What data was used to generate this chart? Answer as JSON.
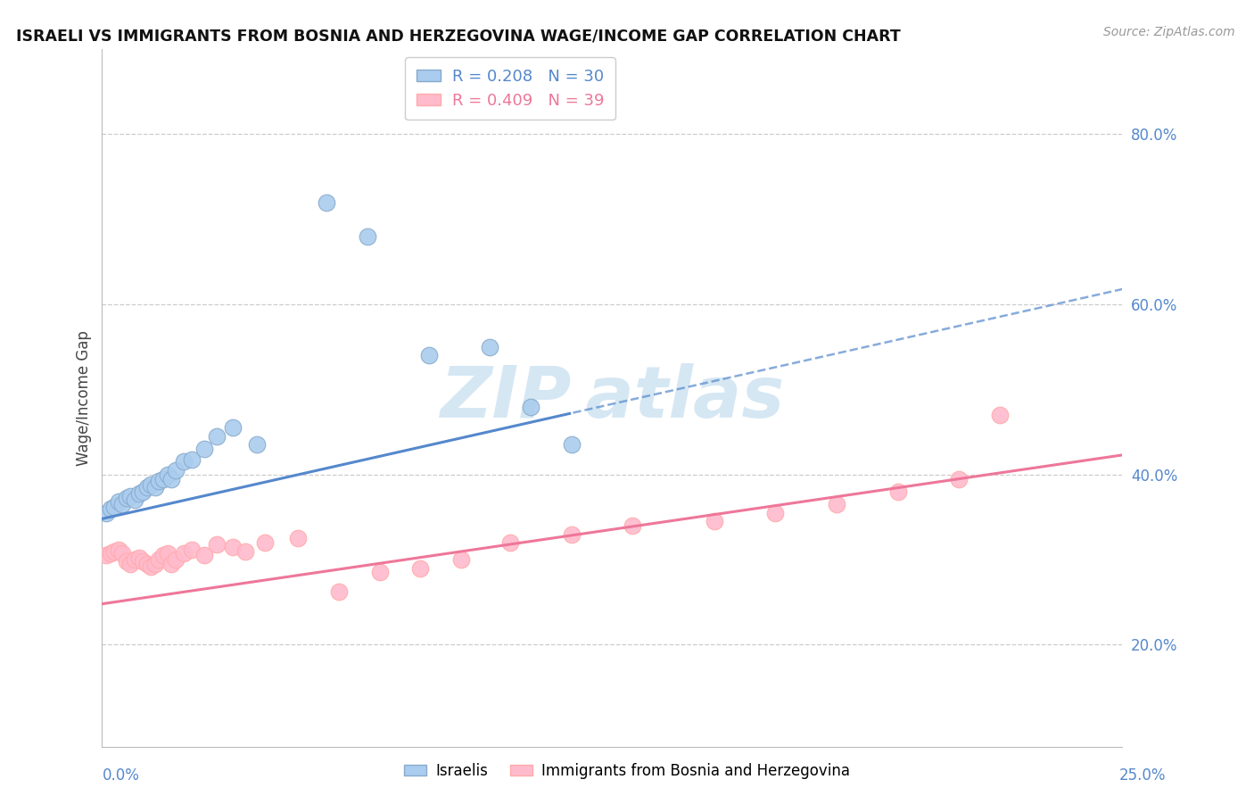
{
  "title": "ISRAELI VS IMMIGRANTS FROM BOSNIA AND HERZEGOVINA WAGE/INCOME GAP CORRELATION CHART",
  "source": "Source: ZipAtlas.com",
  "ylabel": "Wage/Income Gap",
  "legend_label1": "R = 0.208   N = 30",
  "legend_label2": "R = 0.409   N = 39",
  "legend_item1": "Israelis",
  "legend_item2": "Immigrants from Bosnia and Herzegovina",
  "blue_scatter_color": "#AACCEE",
  "blue_edge_color": "#88AACC",
  "pink_scatter_color": "#FFBBCC",
  "pink_edge_color": "#FFAAAA",
  "blue_line_color": "#5588CC",
  "pink_line_color": "#EE7799",
  "watermark_color": "#C8DFF0",
  "grid_color": "#CCCCCC",
  "right_tick_color": "#5588CC",
  "xlabel_color": "#5588CC",
  "title_color": "#111111",
  "source_color": "#999999",
  "xmin": 0.0,
  "xmax": 0.25,
  "ymin": 0.08,
  "ymax": 0.9,
  "right_yticks": [
    0.2,
    0.4,
    0.6,
    0.8
  ],
  "right_yticklabels": [
    "20.0%",
    "40.0%",
    "60.0%",
    "80.0%"
  ],
  "blue_line_x0": 0.0,
  "blue_line_y0": 0.348,
  "blue_line_slope": 1.08,
  "blue_line_solid_end": 0.115,
  "pink_line_x0": 0.0,
  "pink_line_y0": 0.248,
  "pink_line_slope": 0.7,
  "israelis_x": [
    0.001,
    0.002,
    0.003,
    0.004,
    0.005,
    0.006,
    0.007,
    0.008,
    0.009,
    0.01,
    0.011,
    0.012,
    0.013,
    0.014,
    0.015,
    0.016,
    0.017,
    0.018,
    0.02,
    0.022,
    0.025,
    0.028,
    0.032,
    0.038,
    0.055,
    0.065,
    0.08,
    0.095,
    0.105,
    0.115
  ],
  "israelis_y": [
    0.355,
    0.36,
    0.362,
    0.368,
    0.365,
    0.372,
    0.375,
    0.37,
    0.378,
    0.38,
    0.385,
    0.388,
    0.385,
    0.392,
    0.395,
    0.4,
    0.395,
    0.405,
    0.415,
    0.418,
    0.43,
    0.445,
    0.455,
    0.435,
    0.72,
    0.68,
    0.54,
    0.55,
    0.48,
    0.435
  ],
  "bosnia_x": [
    0.001,
    0.002,
    0.003,
    0.004,
    0.005,
    0.006,
    0.007,
    0.008,
    0.009,
    0.01,
    0.011,
    0.012,
    0.013,
    0.014,
    0.015,
    0.016,
    0.017,
    0.018,
    0.02,
    0.022,
    0.025,
    0.028,
    0.032,
    0.035,
    0.04,
    0.048,
    0.058,
    0.068,
    0.078,
    0.088,
    0.1,
    0.115,
    0.13,
    0.15,
    0.165,
    0.18,
    0.195,
    0.21,
    0.22
  ],
  "bosnia_y": [
    0.305,
    0.308,
    0.31,
    0.312,
    0.308,
    0.298,
    0.295,
    0.3,
    0.302,
    0.298,
    0.295,
    0.292,
    0.295,
    0.3,
    0.305,
    0.308,
    0.295,
    0.3,
    0.308,
    0.312,
    0.305,
    0.318,
    0.315,
    0.31,
    0.32,
    0.325,
    0.262,
    0.285,
    0.29,
    0.3,
    0.32,
    0.33,
    0.34,
    0.345,
    0.355,
    0.365,
    0.38,
    0.395,
    0.47
  ]
}
